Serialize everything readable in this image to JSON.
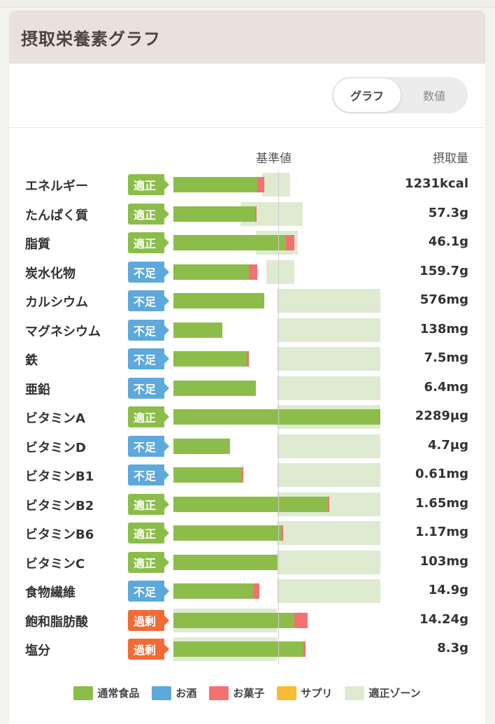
{
  "card": {
    "title": "摂取栄養素グラフ"
  },
  "toggle": {
    "graph": "グラフ",
    "values": "数値"
  },
  "columns": {
    "base": "基準値",
    "intake": "摂取量"
  },
  "colors": {
    "food": "#8cbd4a",
    "alcohol": "#5ea9db",
    "snack": "#f27272",
    "supplement": "#f8bb38",
    "zone": "#deebd1",
    "badge_ok": "#8cbd4a",
    "badge_low": "#5ea9db",
    "badge_high": "#f26b36"
  },
  "nutrients": [
    {
      "name": "エネルギー",
      "status": "適正",
      "value": "1231kcal",
      "food": 0.81,
      "snack": 0.07,
      "zone": [
        0.86,
        1.13
      ]
    },
    {
      "name": "たんぱく質",
      "status": "適正",
      "value": "57.3g",
      "food": 0.79,
      "snack": 0.01,
      "zone": [
        0.65,
        1.25
      ]
    },
    {
      "name": "脂質",
      "status": "適正",
      "value": "46.1g",
      "food": 1.09,
      "snack": 0.08,
      "zone": [
        0.8,
        1.2
      ]
    },
    {
      "name": "炭水化物",
      "status": "不足",
      "value": "159.7g",
      "food": 0.73,
      "snack": 0.08,
      "zone": [
        0.9,
        1.17
      ]
    },
    {
      "name": "カルシウム",
      "status": "不足",
      "value": "576mg",
      "food": 0.88,
      "snack": 0.0,
      "zone": [
        1.0,
        2.0
      ]
    },
    {
      "name": "マグネシウム",
      "status": "不足",
      "value": "138mg",
      "food": 0.47,
      "snack": 0.0,
      "zone": [
        1.0,
        2.0
      ]
    },
    {
      "name": "鉄",
      "status": "不足",
      "value": "7.5mg",
      "food": 0.71,
      "snack": 0.02,
      "zone": [
        1.0,
        2.0
      ]
    },
    {
      "name": "亜鉛",
      "status": "不足",
      "value": "6.4mg",
      "food": 0.8,
      "snack": 0.0,
      "zone": [
        1.0,
        2.0
      ]
    },
    {
      "name": "ビタミンA",
      "status": "適正",
      "value": "2289μg",
      "food": 2.0,
      "snack": 0.0,
      "zone": [
        1.0,
        2.0
      ]
    },
    {
      "name": "ビタミンD",
      "status": "不足",
      "value": "4.7μg",
      "food": 0.55,
      "snack": 0.0,
      "zone": [
        1.0,
        2.0
      ]
    },
    {
      "name": "ビタミンB1",
      "status": "不足",
      "value": "0.61mg",
      "food": 0.66,
      "snack": 0.01,
      "zone": [
        1.0,
        2.0
      ]
    },
    {
      "name": "ビタミンB2",
      "status": "適正",
      "value": "1.65mg",
      "food": 1.49,
      "snack": 0.01,
      "zone": [
        1.0,
        2.0
      ]
    },
    {
      "name": "ビタミンB6",
      "status": "適正",
      "value": "1.17mg",
      "food": 1.05,
      "snack": 0.01,
      "zone": [
        1.0,
        2.0
      ]
    },
    {
      "name": "ビタミンC",
      "status": "適正",
      "value": "103mg",
      "food": 1.01,
      "snack": 0.0,
      "zone": [
        1.0,
        2.0
      ]
    },
    {
      "name": "食物繊維",
      "status": "不足",
      "value": "14.9g",
      "food": 0.77,
      "snack": 0.06,
      "zone": [
        1.0,
        2.0
      ]
    },
    {
      "name": "飽和脂肪酸",
      "status": "過剰",
      "value": "14.24g",
      "food": 1.17,
      "snack": 0.13,
      "zone": [
        0.0,
        1.0
      ]
    },
    {
      "name": "塩分",
      "status": "過剰",
      "value": "8.3g",
      "food": 1.26,
      "snack": 0.02,
      "zone": [
        0.0,
        1.0
      ]
    }
  ],
  "legend": [
    {
      "label": "通常食品",
      "color": "#8cbd4a"
    },
    {
      "label": "お酒",
      "color": "#5ea9db"
    },
    {
      "label": "お菓子",
      "color": "#f27272"
    },
    {
      "label": "サプリ",
      "color": "#f8bb38"
    },
    {
      "label": "適正ゾーン",
      "color": "#deebd1"
    }
  ]
}
